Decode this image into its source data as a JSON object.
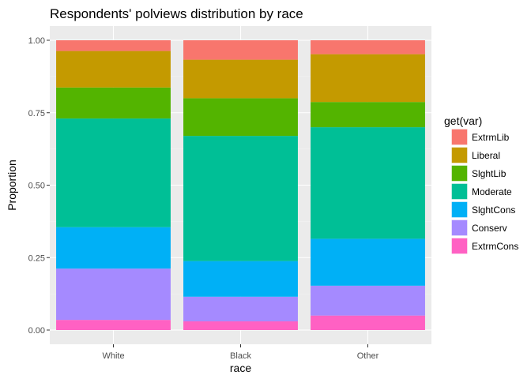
{
  "chart_data": {
    "type": "bar",
    "stacked": true,
    "title": "Respondents' polviews distribution by race",
    "xlabel": "race",
    "ylabel": "Proportion",
    "ylim": [
      0,
      1
    ],
    "yticks": [
      "0.00",
      "0.25",
      "0.50",
      "0.75",
      "1.00"
    ],
    "ytick_values": [
      0,
      0.25,
      0.5,
      0.75,
      1.0
    ],
    "categories": [
      "White",
      "Black",
      "Other"
    ],
    "legend": {
      "title": "get(var)",
      "position": "right"
    },
    "grid": true,
    "series": [
      {
        "name": "ExtrmCons",
        "color": "#FF61C3",
        "values": [
          0.035,
          0.03,
          0.05
        ]
      },
      {
        "name": "Conserv",
        "color": "#A58AFF",
        "values": [
          0.177,
          0.085,
          0.103
        ]
      },
      {
        "name": "SlghtCons",
        "color": "#00B0F6",
        "values": [
          0.143,
          0.123,
          0.162
        ]
      },
      {
        "name": "Moderate",
        "color": "#00BF96",
        "values": [
          0.375,
          0.432,
          0.385
        ]
      },
      {
        "name": "SlghtLib",
        "color": "#53B400",
        "values": [
          0.107,
          0.13,
          0.087
        ]
      },
      {
        "name": "Liberal",
        "color": "#C49A00",
        "values": [
          0.126,
          0.133,
          0.165
        ]
      },
      {
        "name": "ExtrmLib",
        "color": "#F8766D",
        "values": [
          0.037,
          0.067,
          0.048
        ]
      }
    ],
    "legend_order": [
      "ExtrmLib",
      "Liberal",
      "SlghtLib",
      "Moderate",
      "SlghtCons",
      "Conserv",
      "ExtrmCons"
    ]
  }
}
